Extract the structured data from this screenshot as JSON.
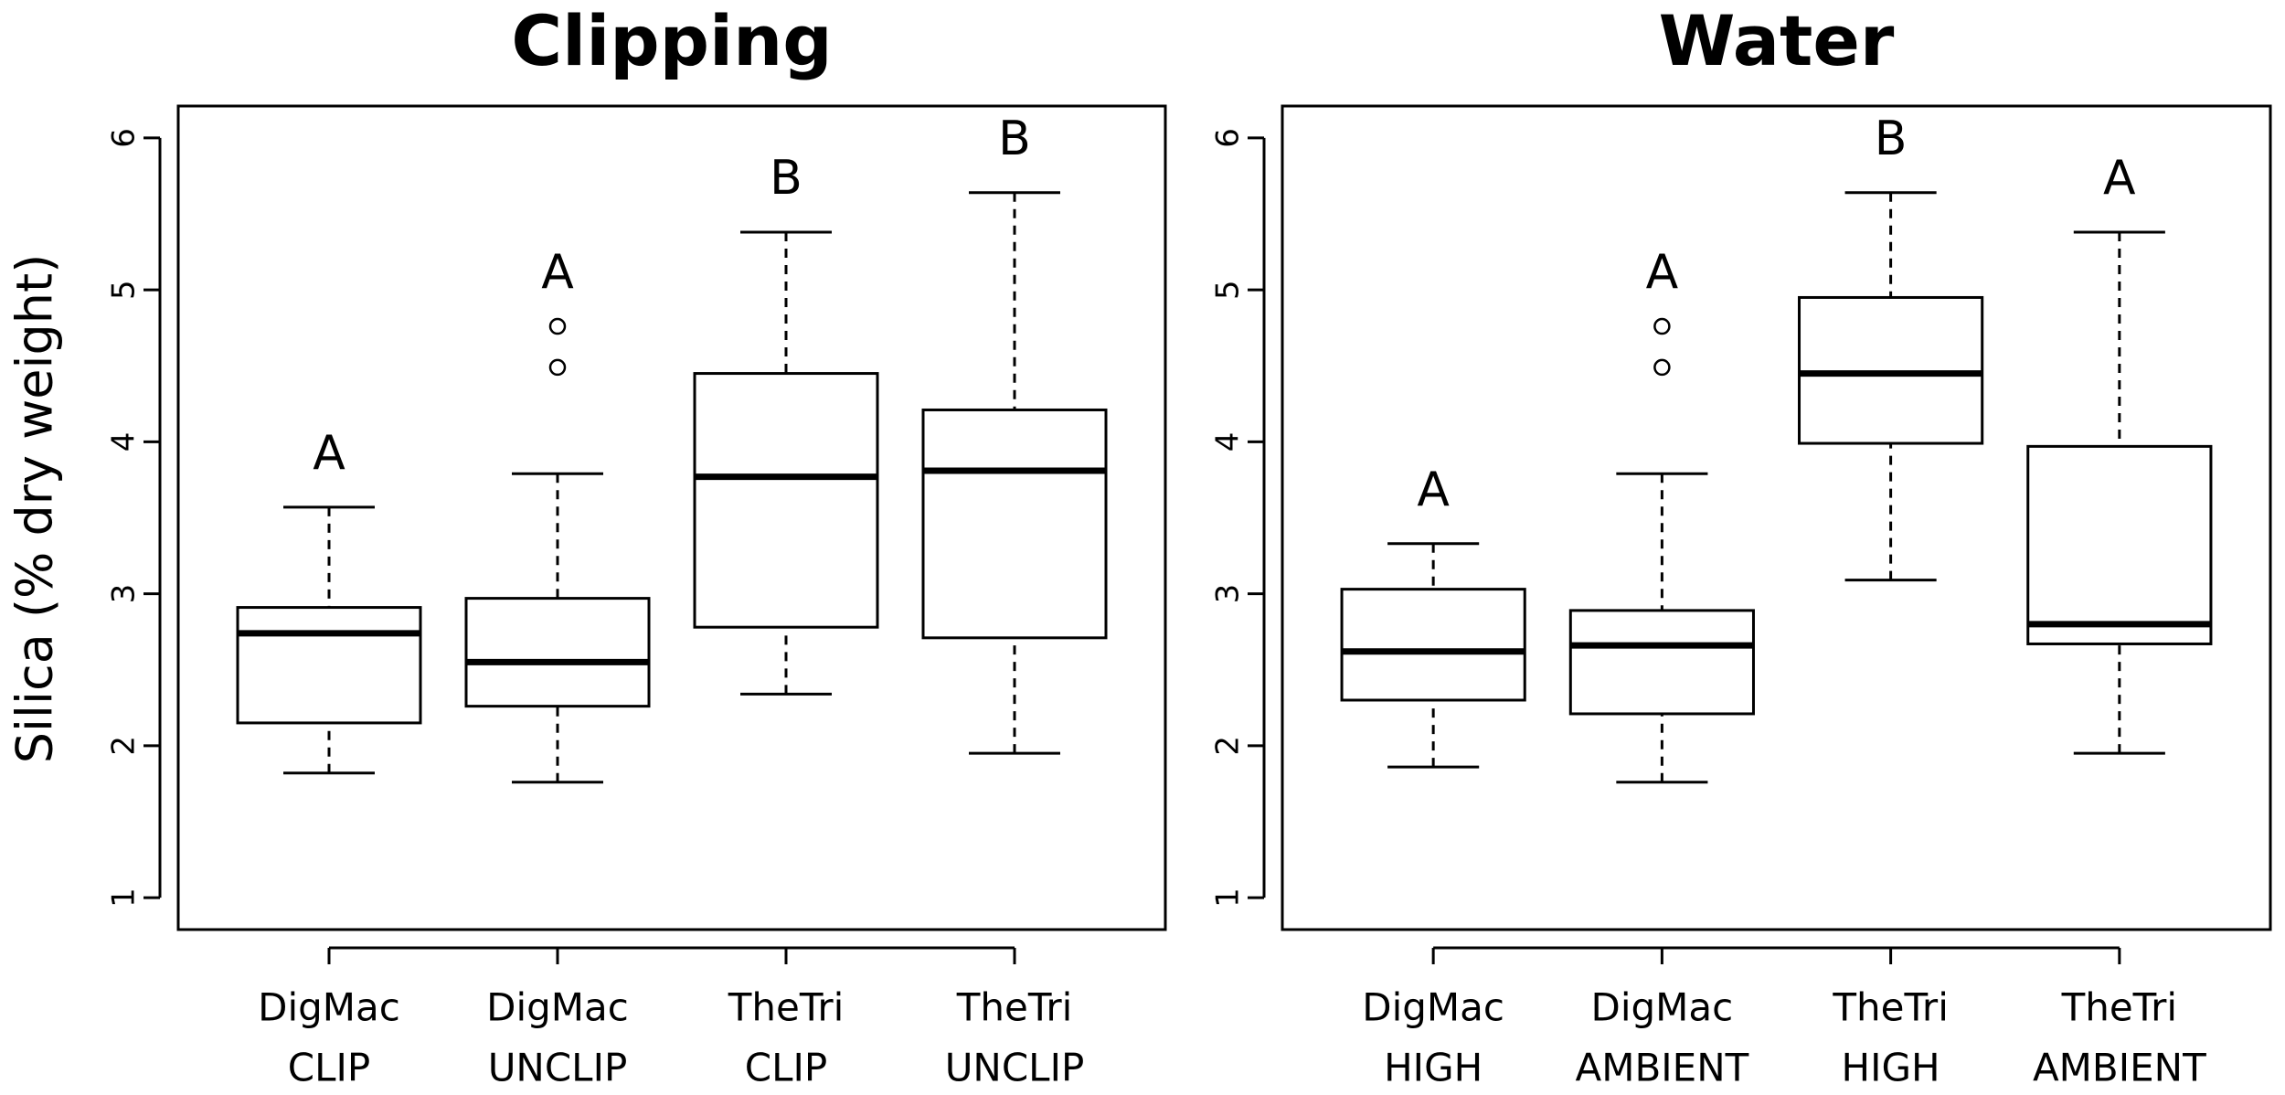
{
  "chart_data": [
    {
      "type": "box",
      "title": "Clipping",
      "ylabel": "Silica (% dry weight)",
      "categories": [
        [
          "DigMac",
          "CLIP"
        ],
        [
          "DigMac",
          "UNCLIP"
        ],
        [
          "TheTri",
          "CLIP"
        ],
        [
          "TheTri",
          "UNCLIP"
        ]
      ],
      "whisker_low": [
        1.82,
        1.76,
        2.34,
        1.95
      ],
      "q1": [
        2.15,
        2.26,
        2.78,
        2.71
      ],
      "median": [
        2.74,
        2.55,
        3.77,
        3.81
      ],
      "q3": [
        2.91,
        2.97,
        4.45,
        4.21
      ],
      "whisker_high": [
        3.57,
        3.79,
        5.38,
        5.64
      ],
      "outliers": [
        [],
        [
          4.49,
          4.76
        ],
        [],
        []
      ],
      "letters": [
        "A",
        "A",
        "B",
        "B"
      ],
      "ylim": [
        0.79,
        6.21
      ],
      "yticks": [
        1,
        2,
        3,
        4,
        5,
        6
      ],
      "color": "#000000"
    },
    {
      "type": "box",
      "title": "Water",
      "categories": [
        [
          "DigMac",
          "HIGH"
        ],
        [
          "DigMac",
          "AMBIENT"
        ],
        [
          "TheTri",
          "HIGH"
        ],
        [
          "TheTri",
          "AMBIENT"
        ]
      ],
      "whisker_low": [
        1.86,
        1.76,
        3.09,
        1.95
      ],
      "q1": [
        2.3,
        2.21,
        3.99,
        2.67
      ],
      "median": [
        2.62,
        2.66,
        4.45,
        2.8
      ],
      "q3": [
        3.03,
        2.89,
        4.95,
        3.97
      ],
      "whisker_high": [
        3.33,
        3.79,
        5.64,
        5.38
      ],
      "outliers": [
        [],
        [
          4.49,
          4.76
        ],
        [],
        []
      ],
      "letters": [
        "A",
        "A",
        "B",
        "A"
      ],
      "ylim": [
        0.79,
        6.21
      ],
      "yticks": [
        1,
        2,
        3,
        4,
        5,
        6
      ],
      "color": "#000000"
    }
  ]
}
